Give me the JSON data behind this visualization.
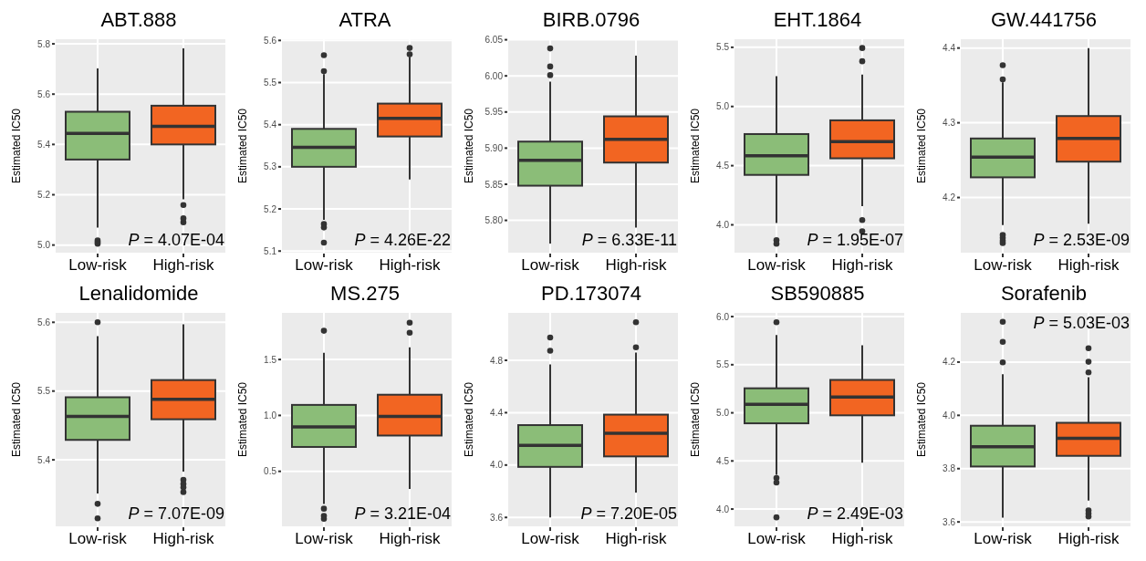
{
  "chart_data": [
    {
      "type": "box",
      "title": "ABT.888",
      "ylabel": "Estimated IC50",
      "categories": [
        "Low-risk",
        "High-risk"
      ],
      "colors": [
        "#8bbd78",
        "#f26522"
      ],
      "ylim": [
        4.966,
        5.822
      ],
      "yticks": [
        {
          "value": 5,
          "label": "5.0"
        },
        5.2,
        5.4,
        5.6,
        5.8
      ],
      "grid": true,
      "annotations": [
        "P = 4.07E-04"
      ],
      "boxes": [
        {
          "low": 5.069,
          "q1": 5.34,
          "median": 5.444,
          "q3": 5.53,
          "high": 5.702,
          "outliers": [
            5.018,
            5.011,
            5.005
          ]
        },
        {
          "low": 5.182,
          "q1": 5.4,
          "median": 5.472,
          "q3": 5.554,
          "high": 5.782,
          "outliers": [
            5.159,
            5.106,
            5.09
          ]
        }
      ]
    },
    {
      "type": "box",
      "title": "ATRA",
      "ylabel": "Estimated IC50",
      "categories": [
        "Low-risk",
        "High-risk"
      ],
      "colors": [
        "#8bbd78",
        "#f26522"
      ],
      "ylim": [
        5.094,
        5.605
      ],
      "yticks": [
        5.1,
        5.2,
        5.3,
        5.4,
        5.5,
        5.6
      ],
      "grid": true,
      "annotations": [
        "P = 4.26E-22"
      ],
      "boxes": [
        {
          "low": 5.174,
          "q1": 5.3,
          "median": 5.346,
          "q3": 5.39,
          "high": 5.52,
          "outliers": [
            5.565,
            5.527,
            5.164,
            5.156,
            5.12
          ]
        },
        {
          "low": 5.27,
          "q1": 5.372,
          "median": 5.415,
          "q3": 5.45,
          "high": 5.561,
          "outliers": [
            5.582,
            5.567
          ]
        }
      ]
    },
    {
      "type": "box",
      "title": "BIRB.0796",
      "ylabel": "Estimated IC50",
      "categories": [
        "Low-risk",
        "High-risk"
      ],
      "colors": [
        "#8bbd78",
        "#f26522"
      ],
      "ylim": [
        5.754,
        6.052
      ],
      "yticks": [
        {
          "value": 5.8,
          "label": "5.80"
        },
        5.85,
        {
          "value": 5.9,
          "label": "5.90"
        },
        5.95,
        {
          "value": 6,
          "label": "6.00"
        },
        6.05
      ],
      "grid": true,
      "annotations": [
        "P = 6.33E-11"
      ],
      "boxes": [
        {
          "low": 5.768,
          "q1": 5.848,
          "median": 5.883,
          "q3": 5.909,
          "high": 5.992,
          "outliers": [
            6.038,
            6.013,
            6.001
          ]
        },
        {
          "low": 5.79,
          "q1": 5.88,
          "median": 5.912,
          "q3": 5.944,
          "high": 6.028
        }
      ]
    },
    {
      "type": "box",
      "title": "EHT.1864",
      "ylabel": "Estimated IC50",
      "categories": [
        "Low-risk",
        "High-risk"
      ],
      "colors": [
        "#8bbd78",
        "#f26522"
      ],
      "ylim": [
        3.757,
        5.576
      ],
      "yticks": [
        {
          "value": 4,
          "label": "4.0"
        },
        4.5,
        {
          "value": 5,
          "label": "5.0"
        },
        5.5
      ],
      "grid": true,
      "annotations": [
        "P = 1.95E-07"
      ],
      "boxes": [
        {
          "low": 4.016,
          "q1": 4.422,
          "median": 4.584,
          "q3": 4.767,
          "high": 5.257,
          "outliers": [
            3.87,
            3.84
          ]
        },
        {
          "low": 4.157,
          "q1": 4.562,
          "median": 4.703,
          "q3": 4.883,
          "high": 5.27,
          "outliers": [
            5.494,
            5.382,
            4.04,
            3.946
          ]
        }
      ]
    },
    {
      "type": "box",
      "title": "GW.441756",
      "ylabel": "Estimated IC50",
      "categories": [
        "Low-risk",
        "High-risk"
      ],
      "colors": [
        "#8bbd78",
        "#f26522"
      ],
      "ylim": [
        4.125,
        4.413
      ],
      "yticks": [
        4.2,
        4.3,
        4.4
      ],
      "grid": true,
      "annotations": [
        "P = 2.53E-09"
      ],
      "boxes": [
        {
          "low": 4.163,
          "q1": 4.227,
          "median": 4.254,
          "q3": 4.279,
          "high": 4.354,
          "outliers": [
            4.377,
            4.358,
            4.15,
            4.146,
            4.142,
            4.139
          ]
        },
        {
          "low": 4.165,
          "q1": 4.248,
          "median": 4.279,
          "q3": 4.309,
          "high": 4.4
        }
      ]
    },
    {
      "type": "box",
      "title": "Lenalidomide",
      "ylabel": "Estimated IC50",
      "categories": [
        "Low-risk",
        "High-risk"
      ],
      "colors": [
        "#8bbd78",
        "#f26522"
      ],
      "ylim": [
        5.302,
        5.615
      ],
      "yticks": [
        5.4,
        5.5,
        5.6
      ],
      "grid": true,
      "annotations": [
        "P = 7.07E-09"
      ],
      "boxes": [
        {
          "low": 5.351,
          "q1": 5.429,
          "median": 5.463,
          "q3": 5.491,
          "high": 5.58,
          "outliers": [
            5.6,
            5.336,
            5.315
          ]
        },
        {
          "low": 5.383,
          "q1": 5.459,
          "median": 5.488,
          "q3": 5.516,
          "high": 5.597,
          "outliers": [
            5.371,
            5.365,
            5.36,
            5.353
          ]
        }
      ]
    },
    {
      "type": "box",
      "title": "MS.275",
      "ylabel": "Estimated IC50",
      "categories": [
        "Low-risk",
        "High-risk"
      ],
      "colors": [
        "#8bbd78",
        "#f26522"
      ],
      "ylim": [
        0,
        1.925
      ],
      "yticks": [
        0.5,
        {
          "value": 1,
          "label": "1.0"
        },
        1.5
      ],
      "grid": true,
      "annotations": [
        "P = 3.21E-04"
      ],
      "boxes": [
        {
          "low": 0.207,
          "q1": 0.718,
          "median": 0.898,
          "q3": 1.094,
          "high": 1.561,
          "outliers": [
            1.757,
            0.166,
            0.102,
            0.075
          ]
        },
        {
          "low": 0.343,
          "q1": 0.82,
          "median": 0.992,
          "q3": 1.185,
          "high": 1.608,
          "outliers": [
            1.829,
            1.74
          ]
        }
      ]
    },
    {
      "type": "box",
      "title": "PD.173074",
      "ylabel": "Estimated IC50",
      "categories": [
        "Low-risk",
        "High-risk"
      ],
      "colors": [
        "#8bbd78",
        "#f26522"
      ],
      "ylim": [
        3.525,
        5.169
      ],
      "yticks": [
        3.6,
        {
          "value": 4,
          "label": "4.0"
        },
        4.4,
        4.8
      ],
      "grid": true,
      "annotations": [
        "P = 7.20E-05"
      ],
      "boxes": [
        {
          "low": 3.6,
          "q1": 3.986,
          "median": 4.15,
          "q3": 4.305,
          "high": 4.769,
          "outliers": [
            4.974,
            4.873
          ]
        },
        {
          "low": 3.789,
          "q1": 4.066,
          "median": 4.242,
          "q3": 4.385,
          "high": 4.859,
          "outliers": [
            5.091,
            4.899
          ]
        }
      ]
    },
    {
      "type": "box",
      "title": "SB590885",
      "ylabel": "Estimated IC50",
      "categories": [
        "Low-risk",
        "High-risk"
      ],
      "colors": [
        "#8bbd78",
        "#f26522"
      ],
      "ylim": [
        3.811,
        6.048
      ],
      "yticks": [
        {
          "value": 4,
          "label": "4.0"
        },
        4.5,
        {
          "value": 5,
          "label": "5.0"
        },
        5.5,
        {
          "value": 6,
          "label": "6.0"
        }
      ],
      "grid": true,
      "annotations": [
        "P = 2.49E-03"
      ],
      "boxes": [
        {
          "low": 4.355,
          "q1": 4.891,
          "median": 5.089,
          "q3": 5.255,
          "high": 5.808,
          "outliers": [
            5.942,
            4.323,
            4.275,
            3.914
          ]
        },
        {
          "low": 4.482,
          "q1": 4.974,
          "median": 5.163,
          "q3": 5.342,
          "high": 5.703
        }
      ]
    },
    {
      "type": "box",
      "title": "Sorafenib",
      "ylabel": "Estimated IC50",
      "categories": [
        "Low-risk",
        "High-risk"
      ],
      "colors": [
        "#8bbd78",
        "#f26522"
      ],
      "ylim": [
        3.58,
        4.388
      ],
      "yticks": [
        3.6,
        3.8,
        {
          "value": 4,
          "label": "4.0"
        },
        4.2
      ],
      "grid": true,
      "annotations": [
        "P = 5.03E-03"
      ],
      "boxes": [
        {
          "low": 3.616,
          "q1": 3.808,
          "median": 3.882,
          "q3": 3.961,
          "high": 4.154,
          "outliers": [
            4.351,
            4.276,
            4.199
          ]
        },
        {
          "low": 3.68,
          "q1": 3.848,
          "median": 3.914,
          "q3": 3.972,
          "high": 4.143,
          "outliers": [
            4.252,
            4.201,
            4.161,
            3.643,
            3.631,
            3.62
          ]
        }
      ]
    }
  ]
}
